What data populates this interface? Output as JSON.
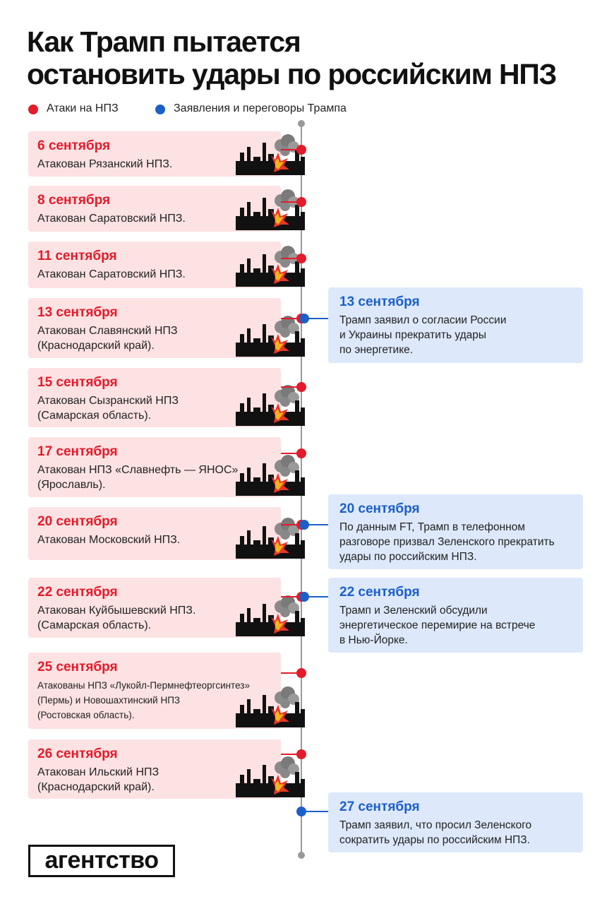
{
  "header": {
    "title": [
      "Как Трамп пытается",
      "остановить удары по российским НПЗ"
    ]
  },
  "legend": {
    "attacks": "Атаки на НПЗ",
    "statements": "Заявления и переговоры Трампа"
  },
  "attacks": [
    {
      "date": "6 сентября",
      "lines": [
        "Атакован Рязанский НПЗ."
      ]
    },
    {
      "date": "8 сентября",
      "lines": [
        "Атакован Саратовский НПЗ."
      ]
    },
    {
      "date": "11 сентября",
      "lines": [
        "Атакован Саратовский НПЗ."
      ]
    },
    {
      "date": "13 сентября",
      "lines": [
        "Атакован Славянский НПЗ",
        "(Краснодарский край)."
      ]
    },
    {
      "date": "15 сентября",
      "lines": [
        "Атакован Сызранский НПЗ",
        "(Самарская область)."
      ]
    },
    {
      "date": "17 сентября",
      "lines": [
        "Атакован НПЗ «Славнефть — ЯНОС»",
        "(Ярославль)."
      ]
    },
    {
      "date": "20 сентября",
      "lines": [
        "Атакован Московский НПЗ."
      ]
    },
    {
      "date": "22 сентября",
      "lines": [
        "Атакован Куйбышевский НПЗ.",
        "(Самарская область)."
      ]
    },
    {
      "date": "25 сентября",
      "lines": [
        "Атакованы НПЗ «Лукойл-Пермнефтеоргсинтез»",
        "(Пермь) и Новошахтинский НПЗ",
        "(Ростовская область)."
      ]
    },
    {
      "date": "26 сентября",
      "lines": [
        "Атакован Ильский НПЗ",
        "(Краснодарский край)."
      ]
    }
  ],
  "statements": [
    {
      "date": "13 сентября",
      "lines": [
        "Трамп заявил о согласии России",
        "и Украины прекратить удары",
        "по энергетике."
      ]
    },
    {
      "date": "20 сентября",
      "lines": [
        "По данным FT, Трамп в телефонном",
        "разговоре призвал Зеленского прекратить",
        "удары по российским НПЗ."
      ]
    },
    {
      "date": "22 сентября",
      "lines": [
        "Трамп и Зеленский обсудили",
        "энергетическое перемирие на встрече",
        "в Нью-Йорке."
      ]
    },
    {
      "date": "27 сентября",
      "lines": [
        "Трамп заявил, что просил Зеленского",
        "сократить удары по российским НПЗ."
      ]
    }
  ],
  "logo": "агентство"
}
